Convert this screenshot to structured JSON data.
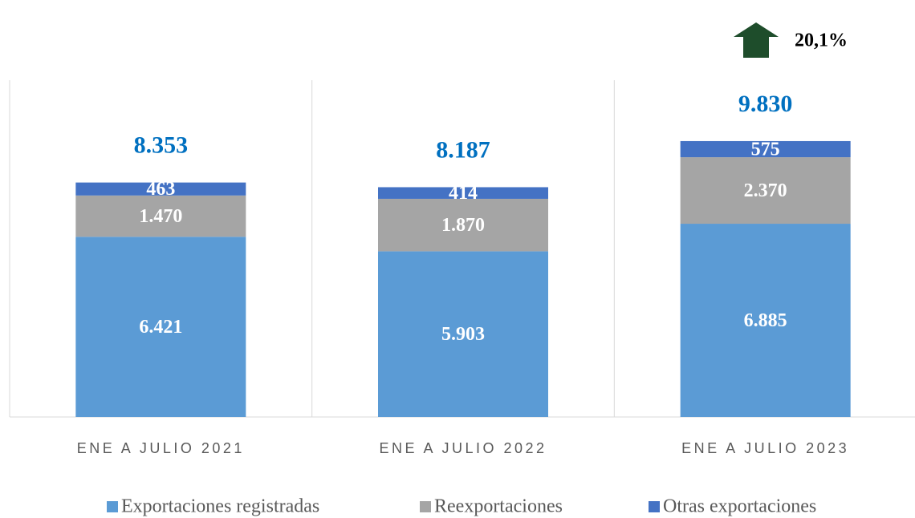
{
  "chart_data": {
    "type": "stacked_bar",
    "categories": [
      "ENE A JULIO 2021",
      "ENE A JULIO 2022",
      "ENE A JULIO 2023"
    ],
    "series": [
      {
        "name": "Exportaciones registradas",
        "color": "#5b9bd5",
        "values": [
          6421,
          5903,
          6885
        ],
        "value_labels": [
          "6.421",
          "5.903",
          "6.885"
        ]
      },
      {
        "name": "Reexportaciones",
        "color": "#a5a5a5",
        "values": [
          1470,
          1870,
          2370
        ],
        "value_labels": [
          "1.470",
          "1.870",
          "2.370"
        ]
      },
      {
        "name": "Otras exportaciones",
        "color": "#4472c4",
        "values": [
          463,
          414,
          575
        ],
        "value_labels": [
          "463",
          "414",
          "575"
        ]
      }
    ],
    "totals": {
      "values": [
        8353,
        8187,
        9830
      ],
      "value_labels": [
        "8.353",
        "8.187",
        "9.830"
      ],
      "color": "#0070c0"
    },
    "annotation": {
      "value": 20.1,
      "label": "20,1%",
      "color": "#1e4d2b"
    },
    "ylim": [
      0,
      12000
    ],
    "legend": "bottom"
  }
}
